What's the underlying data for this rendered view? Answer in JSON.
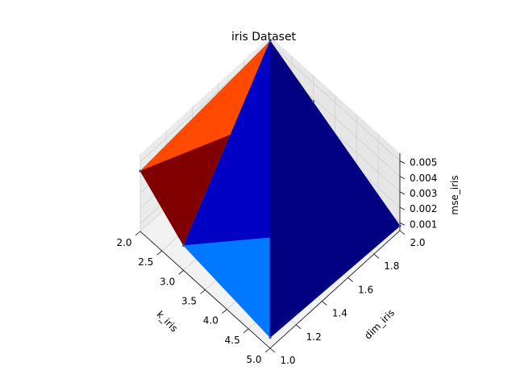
{
  "chart_data": {
    "type": "surface3d",
    "title": "iris Dataset",
    "xlabel": "k_iris",
    "ylabel": "dim_iris",
    "zlabel": "mse_iris",
    "xlim": [
      2.0,
      5.0
    ],
    "ylim": [
      1.0,
      2.0
    ],
    "zlim": [
      0.0005,
      0.0055
    ],
    "x_ticks": [
      "2.0",
      "2.5",
      "3.0",
      "3.5",
      "4.0",
      "4.5",
      "5.0"
    ],
    "y_ticks": [
      "1.0",
      "1.2",
      "1.4",
      "1.6",
      "1.8",
      "2.0"
    ],
    "z_ticks": [
      "0.001",
      "0.002",
      "0.003",
      "0.004",
      "0.005"
    ],
    "grid": true,
    "colormap": "jet",
    "points": [
      {
        "k": 2,
        "dim": 1,
        "mse": 0.0044
      },
      {
        "k": 2,
        "dim": 2,
        "mse": 0.0052
      },
      {
        "k": 3,
        "dim": 1,
        "mse": 0.0021
      },
      {
        "k": 3,
        "dim": 2,
        "mse": 0.0038
      },
      {
        "k": 5,
        "dim": 1,
        "mse": 0.0012
      },
      {
        "k": 5,
        "dim": 2,
        "mse": 0.0008
      }
    ],
    "triangles": [
      {
        "vertices": [
          0,
          1,
          3
        ],
        "color": "#ff4a00"
      },
      {
        "vertices": [
          0,
          3,
          2
        ],
        "color": "#800000"
      },
      {
        "vertices": [
          2,
          3,
          1
        ],
        "color": "#adff4a"
      },
      {
        "vertices": [
          2,
          1,
          5
        ],
        "color": "#0000c4"
      },
      {
        "vertices": [
          2,
          5,
          4
        ],
        "color": "#0078ff"
      },
      {
        "vertices": [
          1,
          5,
          4
        ],
        "color": "#000080"
      }
    ]
  }
}
